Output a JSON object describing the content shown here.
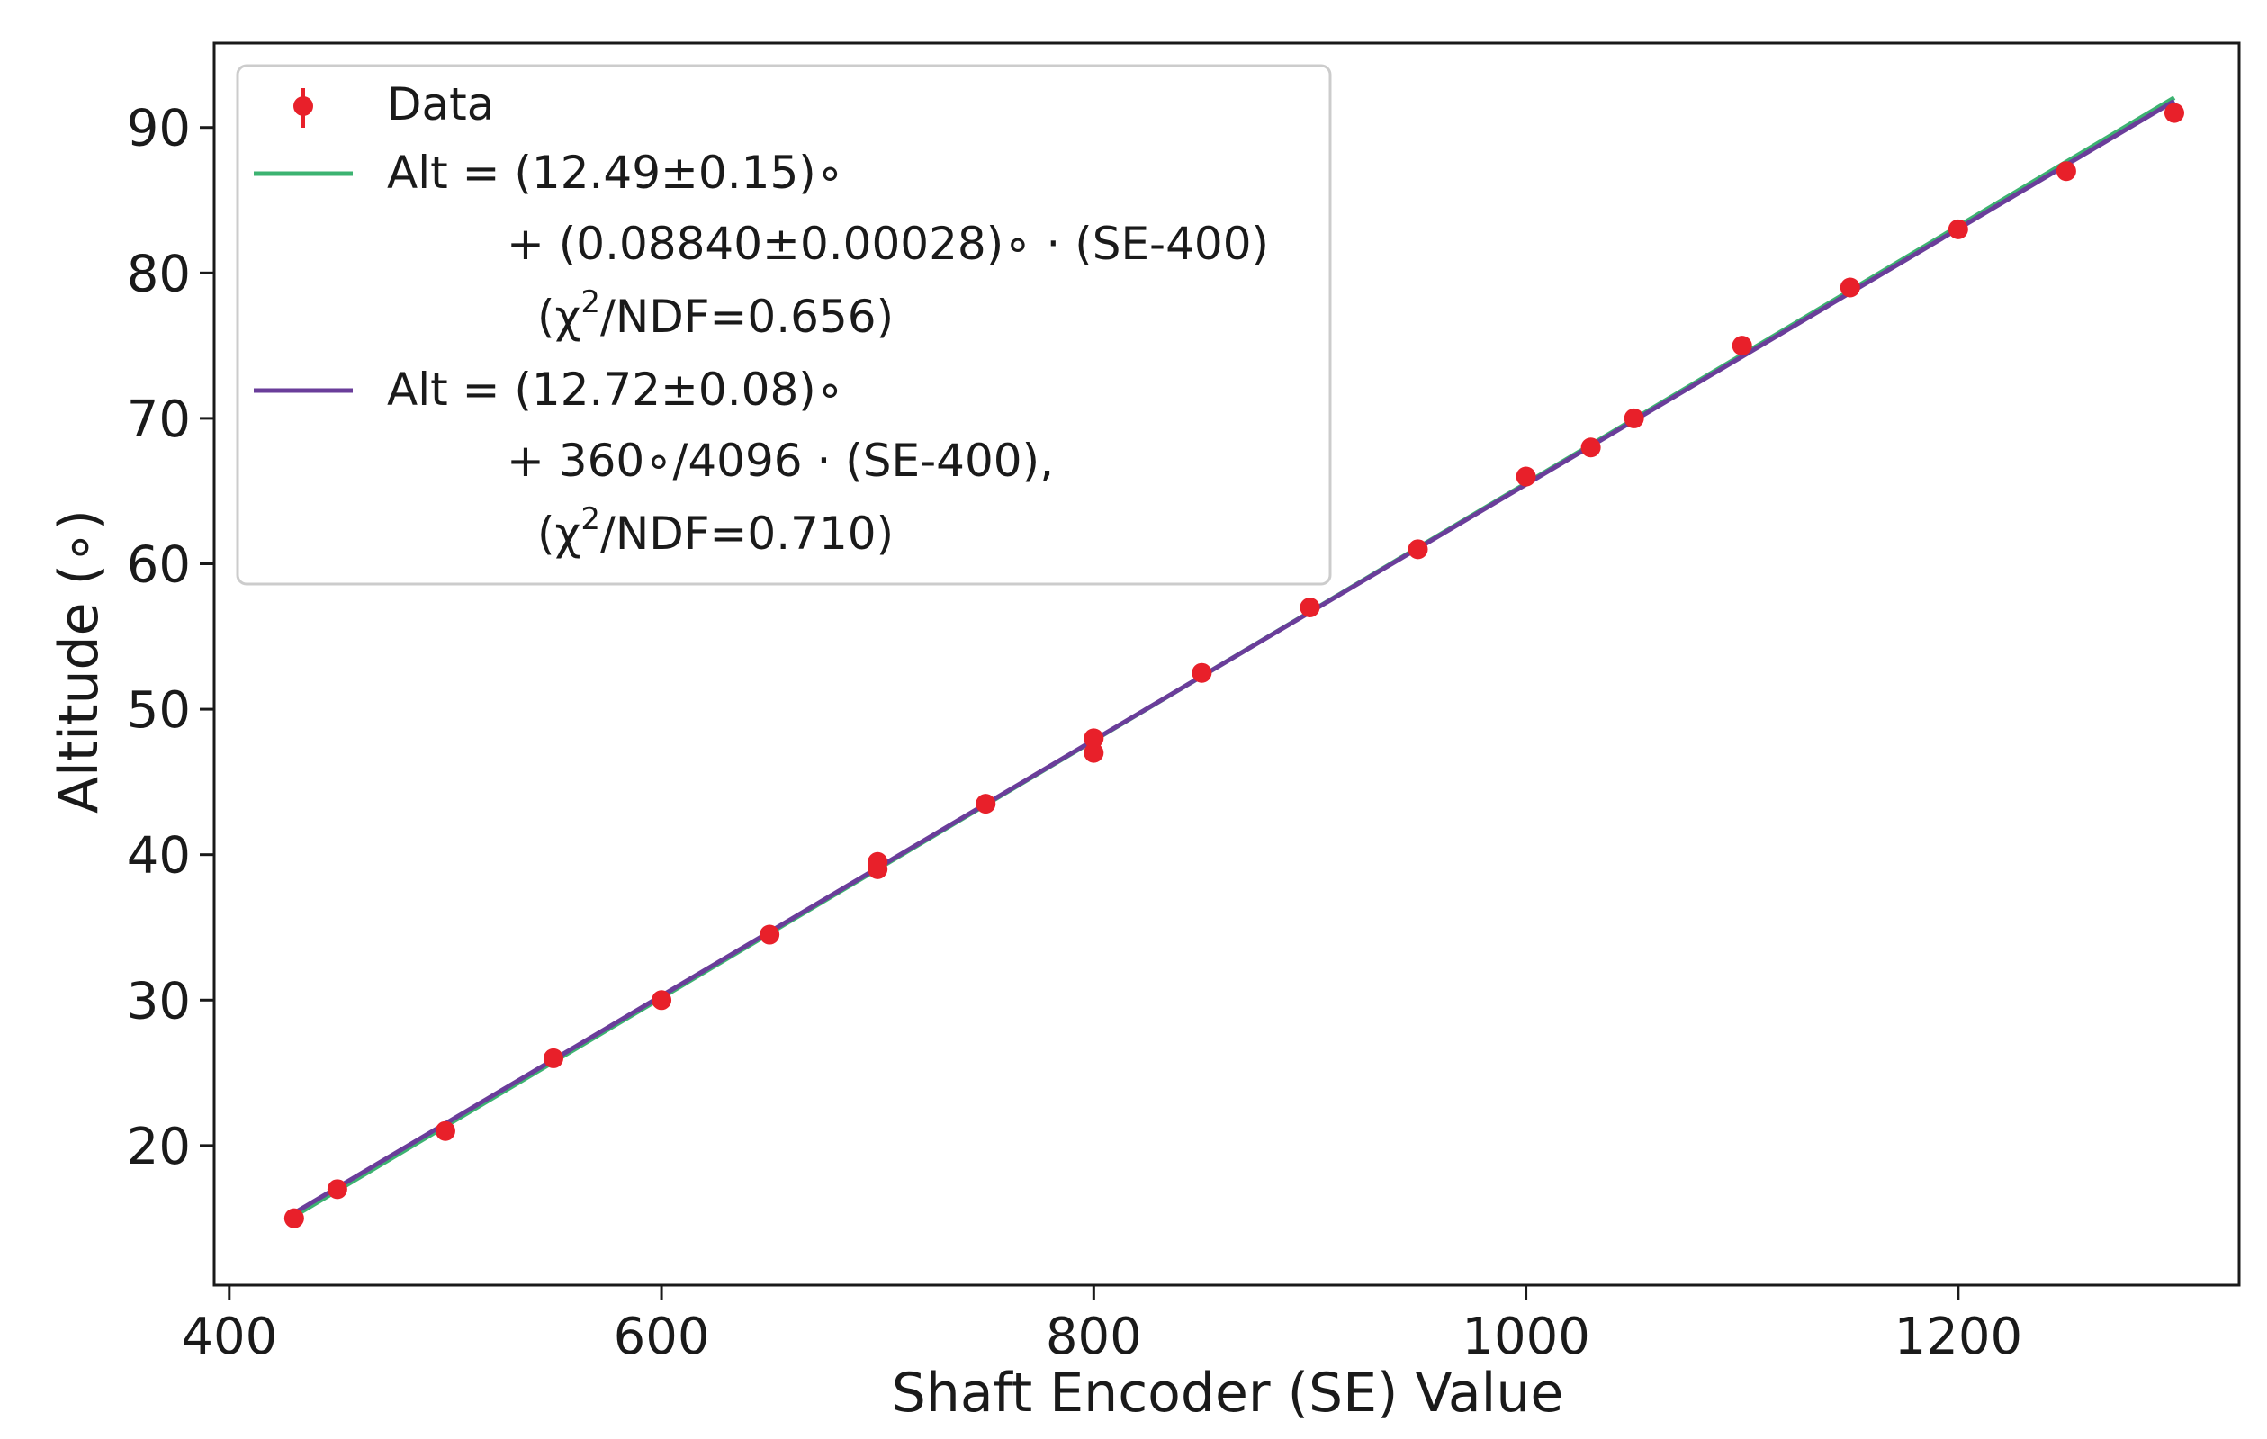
{
  "chart_data": {
    "type": "scatter",
    "xlabel": "Shaft Encoder (SE) Value",
    "ylabel": "Altitude (∘)",
    "xlim": [
      393,
      1330
    ],
    "ylim": [
      10.4,
      95.8
    ],
    "xticks": [
      400,
      600,
      800,
      1000,
      1200
    ],
    "yticks": [
      20,
      30,
      40,
      50,
      60,
      70,
      80,
      90
    ],
    "grid": false,
    "legend_position": "top-left",
    "colors": {
      "data": "#e8202a",
      "fit1": "#3cb371",
      "fit2": "#6a3d9a",
      "axes": "#1a1a1a"
    },
    "series": [
      {
        "name": "Data",
        "kind": "errorbar",
        "x": [
          430,
          450,
          500,
          550,
          600,
          650,
          700,
          700,
          750,
          800,
          800,
          850,
          900,
          950,
          1000,
          1030,
          1050,
          1100,
          1150,
          1200,
          1250,
          1300
        ],
        "y": [
          15,
          17,
          21,
          26,
          30,
          34.5,
          39,
          39.5,
          43.5,
          47,
          48,
          52.5,
          57,
          61,
          66,
          68,
          70,
          75,
          79,
          83,
          87,
          91
        ]
      },
      {
        "name": "Alt = (12.49±0.15)° + (0.08840±0.00028)° · (SE-400) (χ²/NDF=0.656)",
        "kind": "line",
        "intercept": 12.49,
        "slope": 0.0884,
        "x_range": [
          430,
          1300
        ]
      },
      {
        "name": "Alt = (12.72±0.08)° + 360°/4096 · (SE-400), (χ²/NDF=0.710)",
        "kind": "line",
        "intercept": 12.72,
        "slope": 0.087890625,
        "x_range": [
          430,
          1300
        ]
      }
    ],
    "legend": {
      "entries": [
        {
          "marker": "errorbar",
          "lines": [
            "Data"
          ]
        },
        {
          "marker": "line-fit1",
          "lines": [
            "Alt = (12.49±0.15)∘",
            "+ (0.08840±0.00028)∘ · (SE-400)",
            "(χ",
            "2",
            "/NDF=0.656)"
          ]
        },
        {
          "marker": "line-fit2",
          "lines": [
            "Alt = (12.72±0.08)∘",
            "+ 360∘/4096 · (SE-400),",
            "(χ",
            "2",
            "/NDF=0.710)"
          ]
        }
      ]
    }
  }
}
